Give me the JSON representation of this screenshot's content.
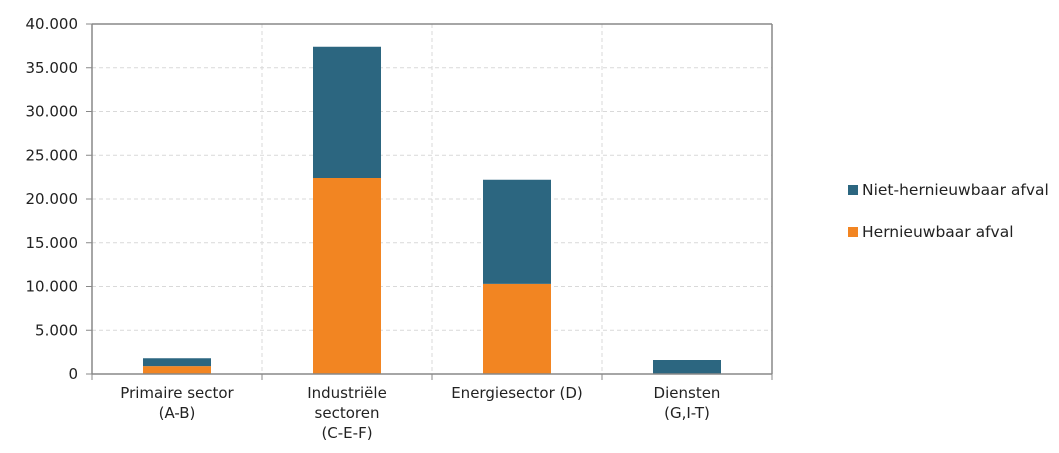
{
  "chart_data": {
    "type": "bar",
    "stacked": true,
    "categories": [
      [
        "Primaire sector",
        "(A-B)"
      ],
      [
        "Industriële",
        "sectoren",
        "(C-E-F)"
      ],
      [
        "Energiesector (D)"
      ],
      [
        "Diensten",
        "(G,I-T)"
      ]
    ],
    "series": [
      {
        "name": "Hernieuwbaar afval",
        "color": "#f28522",
        "values": [
          900,
          22400,
          10300,
          0
        ]
      },
      {
        "name": "Niet-hernieuwbaar afval",
        "color": "#2c6680",
        "values": [
          900,
          15000,
          11900,
          1600
        ]
      }
    ],
    "ylim": [
      0,
      40000
    ],
    "yticks": [
      0,
      5000,
      10000,
      15000,
      20000,
      25000,
      30000,
      35000,
      40000
    ],
    "ytick_labels": [
      "0",
      "5.000",
      "10.000",
      "15.000",
      "20.000",
      "25.000",
      "30.000",
      "35.000",
      "40.000"
    ],
    "grid": true,
    "legend_position": "right"
  },
  "legend": {
    "items": [
      {
        "label": "Niet-hernieuwbaar afval",
        "color": "#2c6680"
      },
      {
        "label": "Hernieuwbaar afval",
        "color": "#f28522"
      }
    ]
  }
}
